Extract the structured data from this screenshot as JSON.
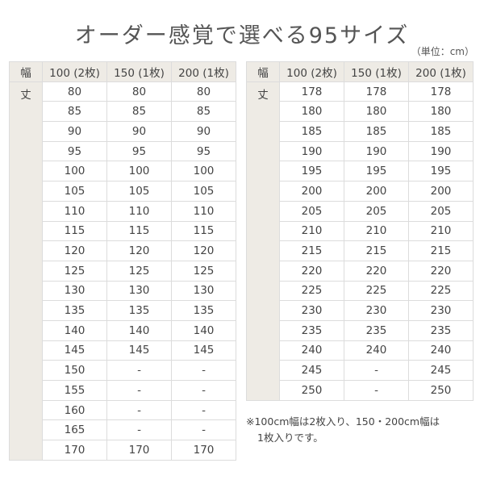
{
  "title": "オーダー感覚で選べる95サイズ",
  "unit": "（単位：cm）",
  "header": {
    "width_label": "幅",
    "length_label": "丈",
    "columns": [
      "100 (2枚)",
      "150 (1枚)",
      "200 (1枚)"
    ]
  },
  "tables": [
    {
      "rows": [
        [
          "80",
          "80",
          "80"
        ],
        [
          "85",
          "85",
          "85"
        ],
        [
          "90",
          "90",
          "90"
        ],
        [
          "95",
          "95",
          "95"
        ],
        [
          "100",
          "100",
          "100"
        ],
        [
          "105",
          "105",
          "105"
        ],
        [
          "110",
          "110",
          "110"
        ],
        [
          "115",
          "115",
          "115"
        ],
        [
          "120",
          "120",
          "120"
        ],
        [
          "125",
          "125",
          "125"
        ],
        [
          "130",
          "130",
          "130"
        ],
        [
          "135",
          "135",
          "135"
        ],
        [
          "140",
          "140",
          "140"
        ],
        [
          "145",
          "145",
          "145"
        ],
        [
          "150",
          "-",
          "-"
        ],
        [
          "155",
          "-",
          "-"
        ],
        [
          "160",
          "-",
          "-"
        ],
        [
          "165",
          "-",
          "-"
        ],
        [
          "170",
          "170",
          "170"
        ]
      ]
    },
    {
      "rows": [
        [
          "178",
          "178",
          "178"
        ],
        [
          "180",
          "180",
          "180"
        ],
        [
          "185",
          "185",
          "185"
        ],
        [
          "190",
          "190",
          "190"
        ],
        [
          "195",
          "195",
          "195"
        ],
        [
          "200",
          "200",
          "200"
        ],
        [
          "205",
          "205",
          "205"
        ],
        [
          "210",
          "210",
          "210"
        ],
        [
          "215",
          "215",
          "215"
        ],
        [
          "220",
          "220",
          "220"
        ],
        [
          "225",
          "225",
          "225"
        ],
        [
          "230",
          "230",
          "230"
        ],
        [
          "235",
          "235",
          "235"
        ],
        [
          "240",
          "240",
          "240"
        ],
        [
          "245",
          "-",
          "245"
        ],
        [
          "250",
          "-",
          "250"
        ]
      ]
    }
  ],
  "note": {
    "line1": "※100cm幅は2枚入り、150・200cm幅は",
    "line2": "1枚入りです。"
  }
}
